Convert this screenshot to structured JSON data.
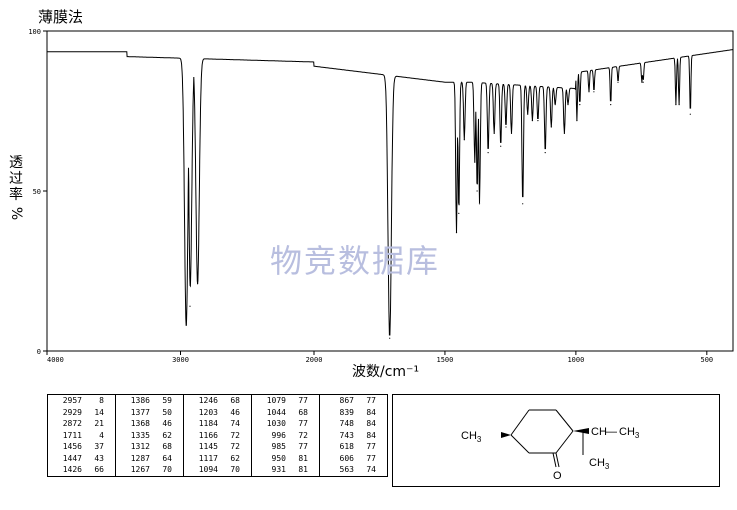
{
  "title": "薄膜法",
  "watermark": "物竞数据库",
  "chart_data": {
    "type": "line",
    "xlabel": "波数/cm⁻¹",
    "ylabel": "透过率 %",
    "xlim": [
      4000,
      400
    ],
    "ylim": [
      0,
      100
    ],
    "x_ticks": [
      "4000",
      "3000",
      "2000",
      "1500",
      "1000",
      "500"
    ],
    "y_ticks": [
      "100",
      "50",
      "0"
    ],
    "peaks": [
      {
        "wn": 2957,
        "t": 8
      },
      {
        "wn": 2929,
        "t": 14
      },
      {
        "wn": 2872,
        "t": 21
      },
      {
        "wn": 1711,
        "t": 4
      },
      {
        "wn": 1456,
        "t": 37
      },
      {
        "wn": 1447,
        "t": 43
      },
      {
        "wn": 1426,
        "t": 66
      },
      {
        "wn": 1386,
        "t": 59
      },
      {
        "wn": 1377,
        "t": 50
      },
      {
        "wn": 1368,
        "t": 46
      },
      {
        "wn": 1335,
        "t": 62
      },
      {
        "wn": 1312,
        "t": 68
      },
      {
        "wn": 1287,
        "t": 64
      },
      {
        "wn": 1267,
        "t": 70
      },
      {
        "wn": 1246,
        "t": 68
      },
      {
        "wn": 1203,
        "t": 46
      },
      {
        "wn": 1184,
        "t": 74
      },
      {
        "wn": 1166,
        "t": 72
      },
      {
        "wn": 1145,
        "t": 72
      },
      {
        "wn": 1117,
        "t": 62
      },
      {
        "wn": 1094,
        "t": 70
      },
      {
        "wn": 1079,
        "t": 77
      },
      {
        "wn": 1044,
        "t": 68
      },
      {
        "wn": 1030,
        "t": 77
      },
      {
        "wn": 996,
        "t": 72
      },
      {
        "wn": 985,
        "t": 77
      },
      {
        "wn": 950,
        "t": 81
      },
      {
        "wn": 931,
        "t": 81
      },
      {
        "wn": 867,
        "t": 77
      },
      {
        "wn": 839,
        "t": 84
      },
      {
        "wn": 748,
        "t": 84
      },
      {
        "wn": 743,
        "t": 84
      },
      {
        "wn": 618,
        "t": 77
      },
      {
        "wn": 606,
        "t": 77
      },
      {
        "wn": 563,
        "t": 74
      }
    ],
    "table_columns": [
      [
        [
          "2957",
          "8"
        ],
        [
          "2929",
          "14"
        ],
        [
          "2872",
          "21"
        ],
        [
          "1711",
          "4"
        ],
        [
          "1456",
          "37"
        ],
        [
          "1447",
          "43"
        ],
        [
          "1426",
          "66"
        ]
      ],
      [
        [
          "1386",
          "59"
        ],
        [
          "1377",
          "50"
        ],
        [
          "1368",
          "46"
        ],
        [
          "1335",
          "62"
        ],
        [
          "1312",
          "68"
        ],
        [
          "1287",
          "64"
        ],
        [
          "1267",
          "70"
        ]
      ],
      [
        [
          "1246",
          "68"
        ],
        [
          "1203",
          "46"
        ],
        [
          "1184",
          "74"
        ],
        [
          "1166",
          "72"
        ],
        [
          "1145",
          "72"
        ],
        [
          "1117",
          "62"
        ],
        [
          "1094",
          "70"
        ]
      ],
      [
        [
          "1079",
          "77"
        ],
        [
          "1044",
          "68"
        ],
        [
          "1030",
          "77"
        ],
        [
          "996",
          "72"
        ],
        [
          "985",
          "77"
        ],
        [
          "950",
          "81"
        ],
        [
          "931",
          "81"
        ]
      ],
      [
        [
          "867",
          "77"
        ],
        [
          "839",
          "84"
        ],
        [
          "748",
          "84"
        ],
        [
          "743",
          "84"
        ],
        [
          "618",
          "77"
        ],
        [
          "606",
          "77"
        ],
        [
          "563",
          "74"
        ]
      ]
    ]
  },
  "structure": {
    "ch3_left": "CH",
    "sub3": "3",
    "ch_right": "CH",
    "dash": "—",
    "ch3_right": "CH",
    "ch3_bottom": "CH",
    "oxygen": "O"
  }
}
